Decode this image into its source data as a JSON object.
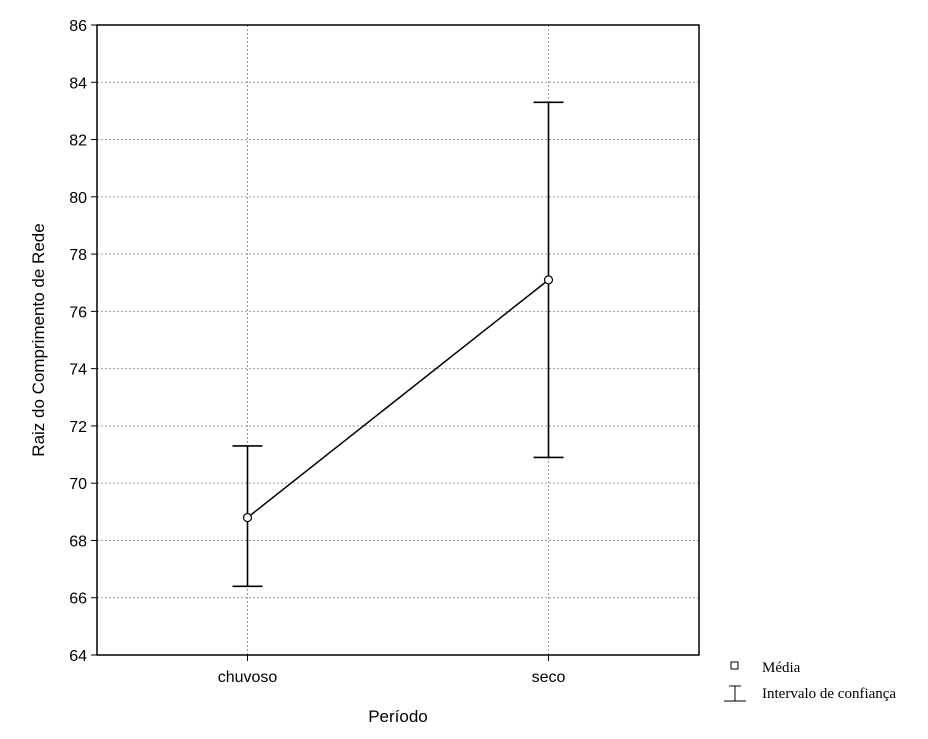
{
  "chart_data": {
    "type": "line",
    "xlabel": "Período",
    "ylabel": "Raiz do Comprimento de Rede",
    "categories": [
      "chuvoso",
      "seco"
    ],
    "series": [
      {
        "name": "Média",
        "values": [
          68.8,
          77.1
        ],
        "ci_lower": [
          66.4,
          70.9
        ],
        "ci_upper": [
          71.3,
          83.3
        ]
      }
    ],
    "ylim": [
      64,
      86
    ],
    "yticks": [
      "64",
      "66",
      "68",
      "70",
      "72",
      "74",
      "76",
      "78",
      "80",
      "82",
      "84",
      "86"
    ],
    "grid": true,
    "legend_position": "bottom-right",
    "legend": [
      {
        "label": "Média",
        "marker": "square"
      },
      {
        "label": "Intervalo de confiança",
        "marker": "errorbar"
      }
    ]
  }
}
